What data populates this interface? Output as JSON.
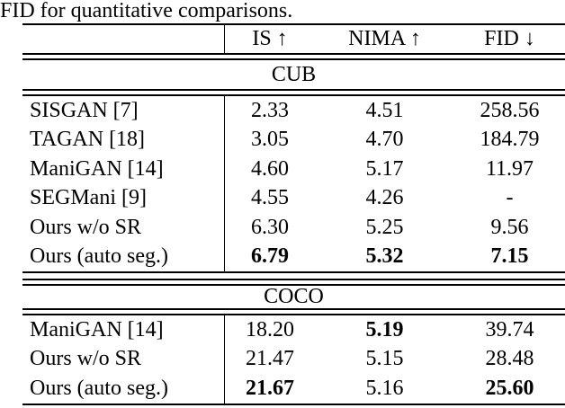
{
  "caption": "FID for quantitative comparisons.",
  "table": {
    "columns": [
      "IS ↑",
      "NIMA ↑",
      "FID ↓"
    ],
    "sections": [
      {
        "name": "CUB",
        "rows": [
          {
            "method": "SISGAN [7]",
            "cells": [
              {
                "t": "2.33",
                "b": false
              },
              {
                "t": "4.51",
                "b": false
              },
              {
                "t": "258.56",
                "b": false
              }
            ]
          },
          {
            "method": "TAGAN [18]",
            "cells": [
              {
                "t": "3.05",
                "b": false
              },
              {
                "t": "4.70",
                "b": false
              },
              {
                "t": "184.79",
                "b": false
              }
            ]
          },
          {
            "method": "ManiGAN [14]",
            "cells": [
              {
                "t": "4.60",
                "b": false
              },
              {
                "t": "5.17",
                "b": false
              },
              {
                "t": "11.97",
                "b": false
              }
            ]
          },
          {
            "method": "SEGMani [9]",
            "cells": [
              {
                "t": "4.55",
                "b": false
              },
              {
                "t": "4.26",
                "b": false
              },
              {
                "t": "-",
                "b": false
              }
            ]
          },
          {
            "method": "Ours w/o SR",
            "cells": [
              {
                "t": "6.30",
                "b": false
              },
              {
                "t": "5.25",
                "b": false
              },
              {
                "t": "9.56",
                "b": false
              }
            ]
          },
          {
            "method": "Ours (auto seg.)",
            "cells": [
              {
                "t": "6.79",
                "b": true
              },
              {
                "t": "5.32",
                "b": true
              },
              {
                "t": "7.15",
                "b": true
              }
            ]
          }
        ]
      },
      {
        "name": "COCO",
        "rows": [
          {
            "method": "ManiGAN [14]",
            "cells": [
              {
                "t": "18.20",
                "b": false
              },
              {
                "t": "5.19",
                "b": true
              },
              {
                "t": "39.74",
                "b": false
              }
            ]
          },
          {
            "method": "Ours w/o SR",
            "cells": [
              {
                "t": "21.47",
                "b": false
              },
              {
                "t": "5.15",
                "b": false
              },
              {
                "t": "28.48",
                "b": false
              }
            ]
          },
          {
            "method": "Ours (auto seg.)",
            "cells": [
              {
                "t": "21.67",
                "b": true
              },
              {
                "t": "5.16",
                "b": false
              },
              {
                "t": "25.60",
                "b": true
              }
            ]
          }
        ]
      }
    ]
  },
  "colors": {
    "text": "#000000",
    "background": "#ffffff",
    "rule": "#000000"
  }
}
